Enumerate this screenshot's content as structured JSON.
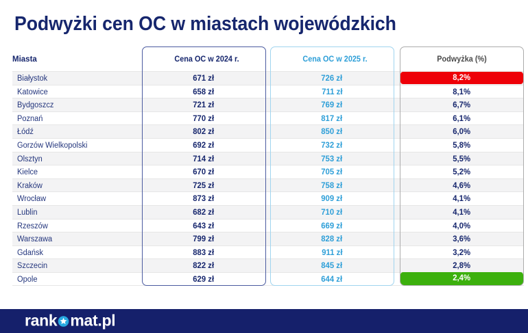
{
  "title": "Podwyżki cen OC w miastach wojewódzkich",
  "table": {
    "columns": {
      "city": "Miasta",
      "price_2024": "Cena OC w 2024 r.",
      "price_2025": "Cena OC w 2025 r.",
      "change": "Podwyżka (%)"
    },
    "rows": [
      {
        "city": "Białystok",
        "price_2024": "671 zł",
        "price_2025": "726 zł",
        "change": "8,2%",
        "highlight": "red"
      },
      {
        "city": "Katowice",
        "price_2024": "658 zł",
        "price_2025": "711 zł",
        "change": "8,1%",
        "highlight": "none"
      },
      {
        "city": "Bydgoszcz",
        "price_2024": "721 zł",
        "price_2025": "769 zł",
        "change": "6,7%",
        "highlight": "none"
      },
      {
        "city": "Poznań",
        "price_2024": "770 zł",
        "price_2025": "817 zł",
        "change": "6,1%",
        "highlight": "none"
      },
      {
        "city": "Łódź",
        "price_2024": "802 zł",
        "price_2025": "850 zł",
        "change": "6,0%",
        "highlight": "none"
      },
      {
        "city": "Gorzów Wielkopolski",
        "price_2024": "692 zł",
        "price_2025": "732 zł",
        "change": "5,8%",
        "highlight": "none"
      },
      {
        "city": "Olsztyn",
        "price_2024": "714 zł",
        "price_2025": "753 zł",
        "change": "5,5%",
        "highlight": "none"
      },
      {
        "city": "Kielce",
        "price_2024": "670 zł",
        "price_2025": "705 zł",
        "change": "5,2%",
        "highlight": "none"
      },
      {
        "city": "Kraków",
        "price_2024": "725 zł",
        "price_2025": "758 zł",
        "change": "4,6%",
        "highlight": "none"
      },
      {
        "city": "Wrocław",
        "price_2024": "873 zł",
        "price_2025": "909 zł",
        "change": "4,1%",
        "highlight": "none"
      },
      {
        "city": "Lublin",
        "price_2024": "682 zł",
        "price_2025": "710 zł",
        "change": "4,1%",
        "highlight": "none"
      },
      {
        "city": "Rzeszów",
        "price_2024": "643 zł",
        "price_2025": "669 zł",
        "change": "4,0%",
        "highlight": "none"
      },
      {
        "city": "Warszawa",
        "price_2024": "799 zł",
        "price_2025": "828 zł",
        "change": "3,6%",
        "highlight": "none"
      },
      {
        "city": "Gdańsk",
        "price_2024": "883 zł",
        "price_2025": "911 zł",
        "change": "3,2%",
        "highlight": "none"
      },
      {
        "city": "Szczecin",
        "price_2024": "822 zł",
        "price_2025": "845 zł",
        "change": "2,8%",
        "highlight": "none"
      },
      {
        "city": "Opole",
        "price_2024": "629 zł",
        "price_2025": "644 zł",
        "change": "2,4%",
        "highlight": "green"
      }
    ]
  },
  "footer": {
    "logo_left": "rank",
    "logo_right": "mat.pl",
    "logo_star_icon": "star-in-circle"
  },
  "colors": {
    "title_navy": "#16266d",
    "footer_navy": "#15206b",
    "accent_blue_2025": "#2e9fd8",
    "border_2024": "#4a5a9f",
    "border_2025": "#9fd4ef",
    "border_change": "#ababab",
    "badge_red": "#ee0008",
    "badge_green": "#3cb00d",
    "row_stripe": "#f3f3f4",
    "star_circle_blue": "#27a9e1"
  },
  "chart_data": {
    "type": "table",
    "title": "Podwyżki cen OC w miastach wojewódzkich",
    "columns": [
      "Miasta",
      "Cena OC w 2024 r.",
      "Cena OC w 2025 r.",
      "Podwyżka (%)"
    ],
    "cities": [
      "Białystok",
      "Katowice",
      "Bydgoszcz",
      "Poznań",
      "Łódź",
      "Gorzów Wielkopolski",
      "Olsztyn",
      "Kielce",
      "Kraków",
      "Wrocław",
      "Lublin",
      "Rzeszów",
      "Warszawa",
      "Gdańsk",
      "Szczecin",
      "Opole"
    ],
    "price_2024_zl": [
      671,
      658,
      721,
      770,
      802,
      692,
      714,
      670,
      725,
      873,
      682,
      643,
      799,
      883,
      822,
      629
    ],
    "price_2025_zl": [
      726,
      711,
      769,
      817,
      850,
      732,
      753,
      705,
      758,
      909,
      710,
      669,
      828,
      911,
      845,
      644
    ],
    "change_pct": [
      8.2,
      8.1,
      6.7,
      6.1,
      6.0,
      5.8,
      5.5,
      5.2,
      4.6,
      4.1,
      4.1,
      4.0,
      3.6,
      3.2,
      2.8,
      2.4
    ]
  }
}
